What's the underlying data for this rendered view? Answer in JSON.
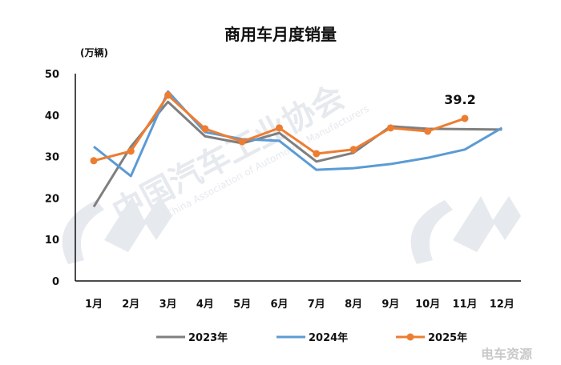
{
  "chart_data": {
    "type": "line",
    "title": "商用车月度销量",
    "ylabel": "(万辆)",
    "xlabel": "",
    "categories": [
      "1月",
      "2月",
      "3月",
      "4月",
      "5月",
      "6月",
      "7月",
      "8月",
      "9月",
      "10月",
      "11月",
      "12月"
    ],
    "ylim": [
      0,
      50
    ],
    "yticks": [
      0,
      10,
      20,
      30,
      40,
      50
    ],
    "grid": false,
    "legend": "bottom",
    "series": [
      {
        "name": "2023年",
        "color": "#7f7f7f",
        "markers": false,
        "values": [
          17.9,
          32.4,
          43.2,
          34.9,
          33.2,
          35.7,
          28.8,
          30.9,
          37.3,
          36.7,
          36.6,
          36.5
        ]
      },
      {
        "name": "2024年",
        "color": "#5b9bd5",
        "markers": false,
        "values": [
          32.4,
          25.3,
          45.7,
          35.9,
          34.2,
          33.8,
          26.8,
          27.2,
          28.2,
          29.7,
          31.7,
          36.9
        ]
      },
      {
        "name": "2025年",
        "color": "#ed7d31",
        "markers": true,
        "values": [
          29.0,
          31.3,
          44.8,
          36.7,
          33.6,
          36.9,
          30.7,
          31.7,
          36.9,
          36.1,
          39.2,
          null
        ]
      }
    ],
    "annotations": [
      {
        "series": "2025年",
        "category": "11月",
        "text": "39.2"
      }
    ]
  },
  "watermark": {
    "text_cn": "中国汽车工业协会",
    "text_en": "China Association of Automobile Manufacturers",
    "corner": "电车资源"
  }
}
